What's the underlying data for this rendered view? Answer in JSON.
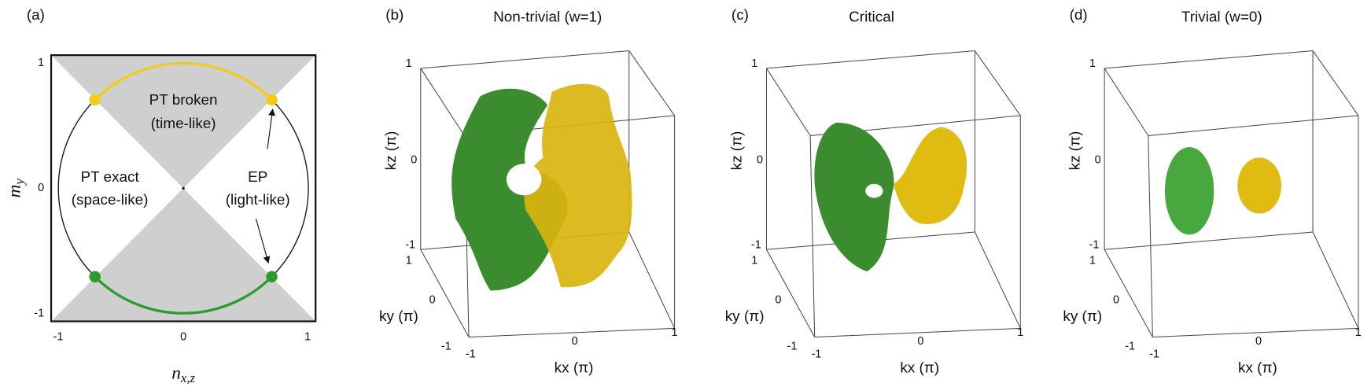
{
  "panels": [
    {
      "label": "(a)",
      "x_ticks": [
        "-1",
        "0",
        "1"
      ],
      "y_ticks": [
        "1",
        "0",
        "-1"
      ],
      "x_axis_label": {
        "symbol": "n",
        "subscript": "x,z"
      },
      "y_axis_label": {
        "symbol": "m",
        "subscript": "y"
      },
      "regions": [
        {
          "name": "PT broken",
          "note": "(time-like)"
        },
        {
          "name": "PT exact",
          "note": "(space-like)"
        },
        {
          "name": "EP",
          "note": "(light-like)"
        }
      ]
    },
    {
      "label": "(b)",
      "title": "Non-trivial (w=1)",
      "kz_ticks": [
        "1",
        "0",
        "-1"
      ],
      "ky_ticks": [
        "1",
        "0",
        "-1"
      ],
      "kx_ticks": [
        "-1",
        "0",
        "1"
      ],
      "kz_label": "kz (π)",
      "ky_label": "ky (π)",
      "kx_label": "kx (π)"
    },
    {
      "label": "(c)",
      "title": "Critical",
      "kz_ticks": [
        "1",
        "0",
        "-1"
      ],
      "ky_ticks": [
        "1",
        "0",
        "-1"
      ],
      "kx_ticks": [
        "-1",
        "0",
        "1"
      ],
      "kz_label": "kz (π)",
      "ky_label": "ky (π)",
      "kx_label": "kx (π)"
    },
    {
      "label": "(d)",
      "title": "Trivial (w=0)",
      "kz_ticks": [
        "1",
        "0",
        "-1"
      ],
      "ky_ticks": [
        "1",
        "0",
        "-1"
      ],
      "kx_ticks": [
        "-1",
        "0",
        "1"
      ],
      "kz_label": "kz (π)",
      "ky_label": "ky (π)",
      "kx_label": "kx (π)"
    }
  ]
}
